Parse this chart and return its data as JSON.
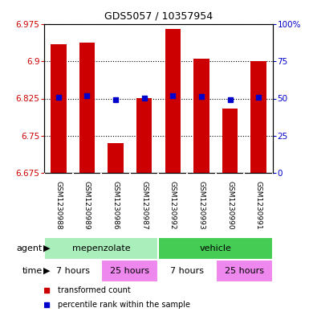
{
  "title": "GDS5057 / 10357954",
  "samples": [
    "GSM1230988",
    "GSM1230989",
    "GSM1230986",
    "GSM1230987",
    "GSM1230992",
    "GSM1230993",
    "GSM1230990",
    "GSM1230991"
  ],
  "bar_values": [
    6.935,
    6.938,
    6.735,
    6.825,
    6.965,
    6.905,
    6.805,
    6.9
  ],
  "percentile_values": [
    6.828,
    6.83,
    6.822,
    6.826,
    6.831,
    6.829,
    6.823,
    6.828
  ],
  "ymin": 6.675,
  "ymax": 6.975,
  "yticks": [
    6.675,
    6.75,
    6.825,
    6.9,
    6.975
  ],
  "right_yticks": [
    0,
    25,
    50,
    75,
    100
  ],
  "bar_color": "#cc0000",
  "percentile_color": "#0000cc",
  "agent_groups": [
    {
      "label": "mepenzolate",
      "start": 0,
      "end": 4,
      "color": "#aaeebb"
    },
    {
      "label": "vehicle",
      "start": 4,
      "end": 8,
      "color": "#44cc55"
    }
  ],
  "time_groups": [
    {
      "label": "7 hours",
      "start": 0,
      "end": 2,
      "color": "#ee99ee"
    },
    {
      "label": "25 hours",
      "start": 2,
      "end": 4,
      "color": "#ee99ee"
    },
    {
      "label": "7 hours",
      "start": 4,
      "end": 6,
      "color": "#ee99ee"
    },
    {
      "label": "25 hours",
      "start": 6,
      "end": 8,
      "color": "#ee99ee"
    }
  ],
  "time_colors": [
    "#ffffff",
    "#ee88ee",
    "#ffffff",
    "#ee88ee"
  ],
  "legend_items": [
    {
      "label": "transformed count",
      "color": "#cc0000"
    },
    {
      "label": "percentile rank within the sample",
      "color": "#0000cc"
    }
  ],
  "background_color": "#ffffff",
  "bar_width": 0.55,
  "label_box_color": "#cccccc",
  "label_box_edge": "#aaaaaa"
}
